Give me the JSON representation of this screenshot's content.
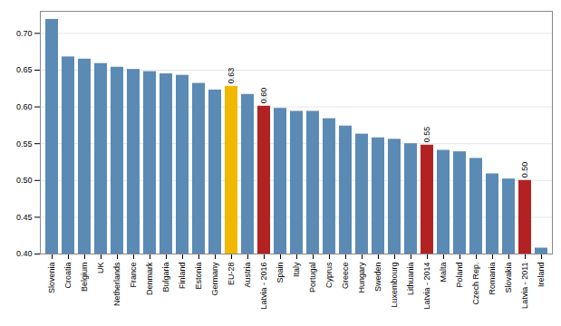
{
  "chart_data": {
    "type": "bar",
    "categories": [
      "Slovenia",
      "Croatia",
      "Belgium",
      "UK",
      "Netherlands",
      "France",
      "Denmark",
      "Bulgaria",
      "Finland",
      "Estonia",
      "Germany",
      "EU-28",
      "Austria",
      "Latvia - 2016",
      "Spain",
      "Italy",
      "Portugal",
      "Cyprus",
      "Greece",
      "Hungary",
      "Sweden",
      "Luxembourg",
      "Lithuania",
      "Latvia - 2014",
      "Malta",
      "Poland",
      "Czech Rep.",
      "Romania",
      "Slovakia",
      "Latvia - 2011",
      "Ireland"
    ],
    "values": [
      0.719,
      0.668,
      0.665,
      0.659,
      0.654,
      0.651,
      0.648,
      0.645,
      0.643,
      0.632,
      0.623,
      0.628,
      0.617,
      0.601,
      0.598,
      0.594,
      0.594,
      0.584,
      0.574,
      0.563,
      0.558,
      0.556,
      0.55,
      0.548,
      0.541,
      0.539,
      0.53,
      0.509,
      0.502,
      0.5,
      0.408
    ],
    "colors": [
      "#5b8ab5",
      "#5b8ab5",
      "#5b8ab5",
      "#5b8ab5",
      "#5b8ab5",
      "#5b8ab5",
      "#5b8ab5",
      "#5b8ab5",
      "#5b8ab5",
      "#5b8ab5",
      "#5b8ab5",
      "#f0b800",
      "#5b8ab5",
      "#b22222",
      "#5b8ab5",
      "#5b8ab5",
      "#5b8ab5",
      "#5b8ab5",
      "#5b8ab5",
      "#5b8ab5",
      "#5b8ab5",
      "#5b8ab5",
      "#5b8ab5",
      "#b22222",
      "#5b8ab5",
      "#5b8ab5",
      "#5b8ab5",
      "#5b8ab5",
      "#5b8ab5",
      "#b22222",
      "#5b8ab5"
    ],
    "annotations": [
      {
        "category": "EU-28",
        "text": "0.63"
      },
      {
        "category": "Latvia - 2016",
        "text": "0.60"
      },
      {
        "category": "Latvia - 2014",
        "text": "0.55"
      },
      {
        "category": "Latvia - 2011",
        "text": "0.50"
      }
    ],
    "ylim": [
      0.4,
      0.73
    ],
    "yticks": [
      {
        "value": 0.4,
        "label": "0.40"
      },
      0.45,
      {
        "value": 0.5,
        "label": "0.50"
      },
      0.55,
      {
        "value": 0.6,
        "label": "0.60"
      },
      0.65,
      {
        "value": 0.7,
        "label": "0.70"
      }
    ],
    "grid": true
  }
}
